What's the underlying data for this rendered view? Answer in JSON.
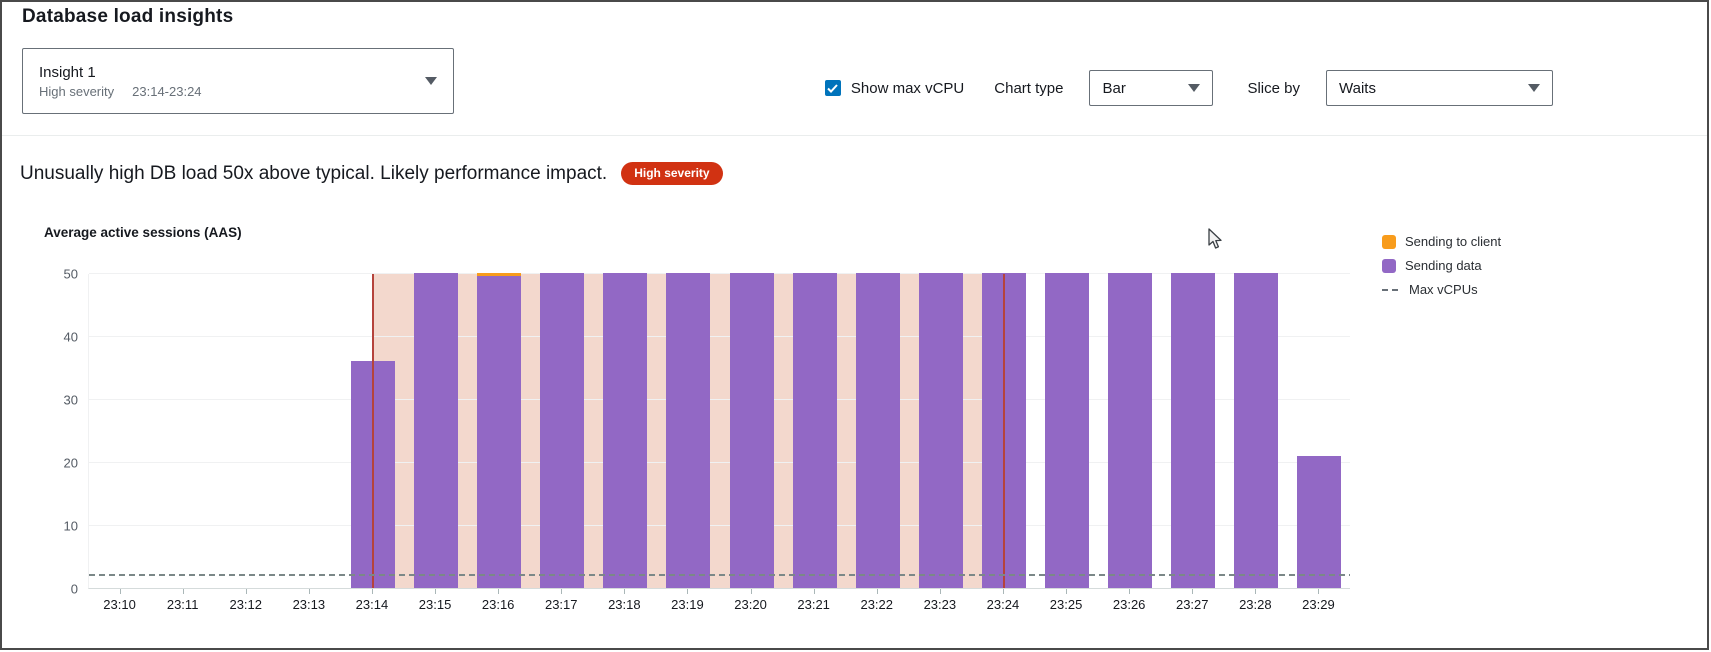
{
  "window": {
    "title": "Database load insights"
  },
  "insight_selector": {
    "name": "Insight 1",
    "severity": "High severity",
    "time_range": "23:14-23:24"
  },
  "toolbar": {
    "show_max_vcpu": {
      "label": "Show max vCPU",
      "checked": true,
      "accent_color": "#0073bb"
    },
    "chart_type": {
      "label": "Chart type",
      "value": "Bar"
    },
    "slice_by": {
      "label": "Slice by",
      "value": "Waits"
    }
  },
  "alert": {
    "message": "Unusually high DB load 50x above typical. Likely performance impact.",
    "severity_badge": "High severity",
    "badge_color": "#d13212"
  },
  "chart_data": {
    "type": "bar",
    "stacked": true,
    "title": "Average active sessions (AAS)",
    "ylabel": "Average active sessions (AAS)",
    "xlabel": "",
    "ylim": [
      0,
      50
    ],
    "yticks": [
      0,
      10,
      20,
      30,
      40,
      50
    ],
    "grid": true,
    "legend_position": "right",
    "categories": [
      "23:10",
      "23:11",
      "23:12",
      "23:13",
      "23:14",
      "23:15",
      "23:16",
      "23:17",
      "23:18",
      "23:19",
      "23:20",
      "23:21",
      "23:22",
      "23:23",
      "23:24",
      "23:25",
      "23:26",
      "23:27",
      "23:28",
      "23:29"
    ],
    "series": [
      {
        "name": "Sending to client",
        "color": "#f89c1c",
        "values": [
          0,
          0,
          0,
          0,
          0,
          0,
          0.5,
          0,
          0,
          0,
          0,
          0,
          0,
          0,
          0,
          0,
          0,
          0,
          0,
          0
        ]
      },
      {
        "name": "Sending data",
        "color": "#9268c5",
        "values": [
          0,
          0,
          0,
          0,
          36,
          50,
          49.5,
          50,
          50,
          50,
          50,
          50,
          50,
          50,
          50,
          50,
          50,
          50,
          50,
          21
        ]
      }
    ],
    "max_vcpus_line": {
      "label": "Max vCPUs",
      "value": 2,
      "style": "dashed",
      "color": "#7b8888"
    },
    "anomaly_band": {
      "start": "23:14",
      "end": "23:24",
      "fill_color": "#f3d8cd",
      "edge_color": "#b5433c"
    }
  }
}
